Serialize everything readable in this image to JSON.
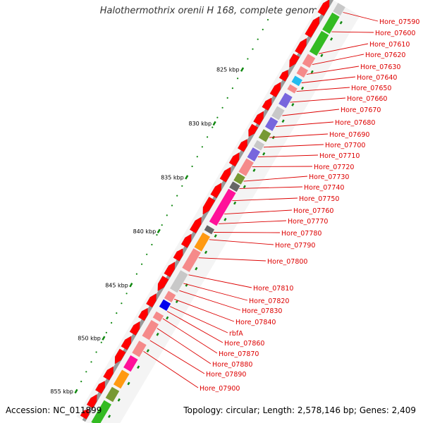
{
  "title": "Halothermothrix orenii H 168, complete genome",
  "footer": {
    "accession": "Accession: NC_011899",
    "summary": "Topology: circular; Length: 2,578,146 bp; Genes: 2,409"
  },
  "colors": {
    "backbone": "#999999",
    "gene_red": "#ff0000",
    "pink": "#f58a8a",
    "green": "#33bb22",
    "purple": "#7766dd",
    "light_gray": "#c8c8c8",
    "cyan": "#22bbee",
    "olive": "#779933",
    "dark_gray": "#666666",
    "magenta": "#ff1199",
    "orange": "#ff9911",
    "blue": "#0000ee",
    "label_red": "#dd0000",
    "tick_green": "#118811"
  },
  "scale": {
    "labels": [
      "825 kbp",
      "830 kbp",
      "835 kbp",
      "840 kbp",
      "845 kbp",
      "850 kbp",
      "855 kbp"
    ],
    "kbp_values": [
      825,
      830,
      835,
      840,
      845,
      850,
      855
    ]
  },
  "gene_labels": [
    "Hore_07590",
    "Hore_07600",
    "Hore_07610",
    "Hore_07620",
    "Hore_07630",
    "Hore_07640",
    "Hore_07650",
    "Hore_07660",
    "Hore_07670",
    "Hore_07680",
    "Hore_07690",
    "Hore_07700",
    "Hore_07710",
    "Hore_07720",
    "Hore_07730",
    "Hore_07740",
    "Hore_07750",
    "Hore_07760",
    "Hore_07770",
    "Hore_07780",
    "Hore_07790",
    "Hore_07800",
    "Hore_07810",
    "Hore_07820",
    "Hore_07830",
    "Hore_07840",
    "rbfA",
    "Hore_07860",
    "Hore_07870",
    "Hore_07880",
    "Hore_07890",
    "Hore_07900"
  ]
}
